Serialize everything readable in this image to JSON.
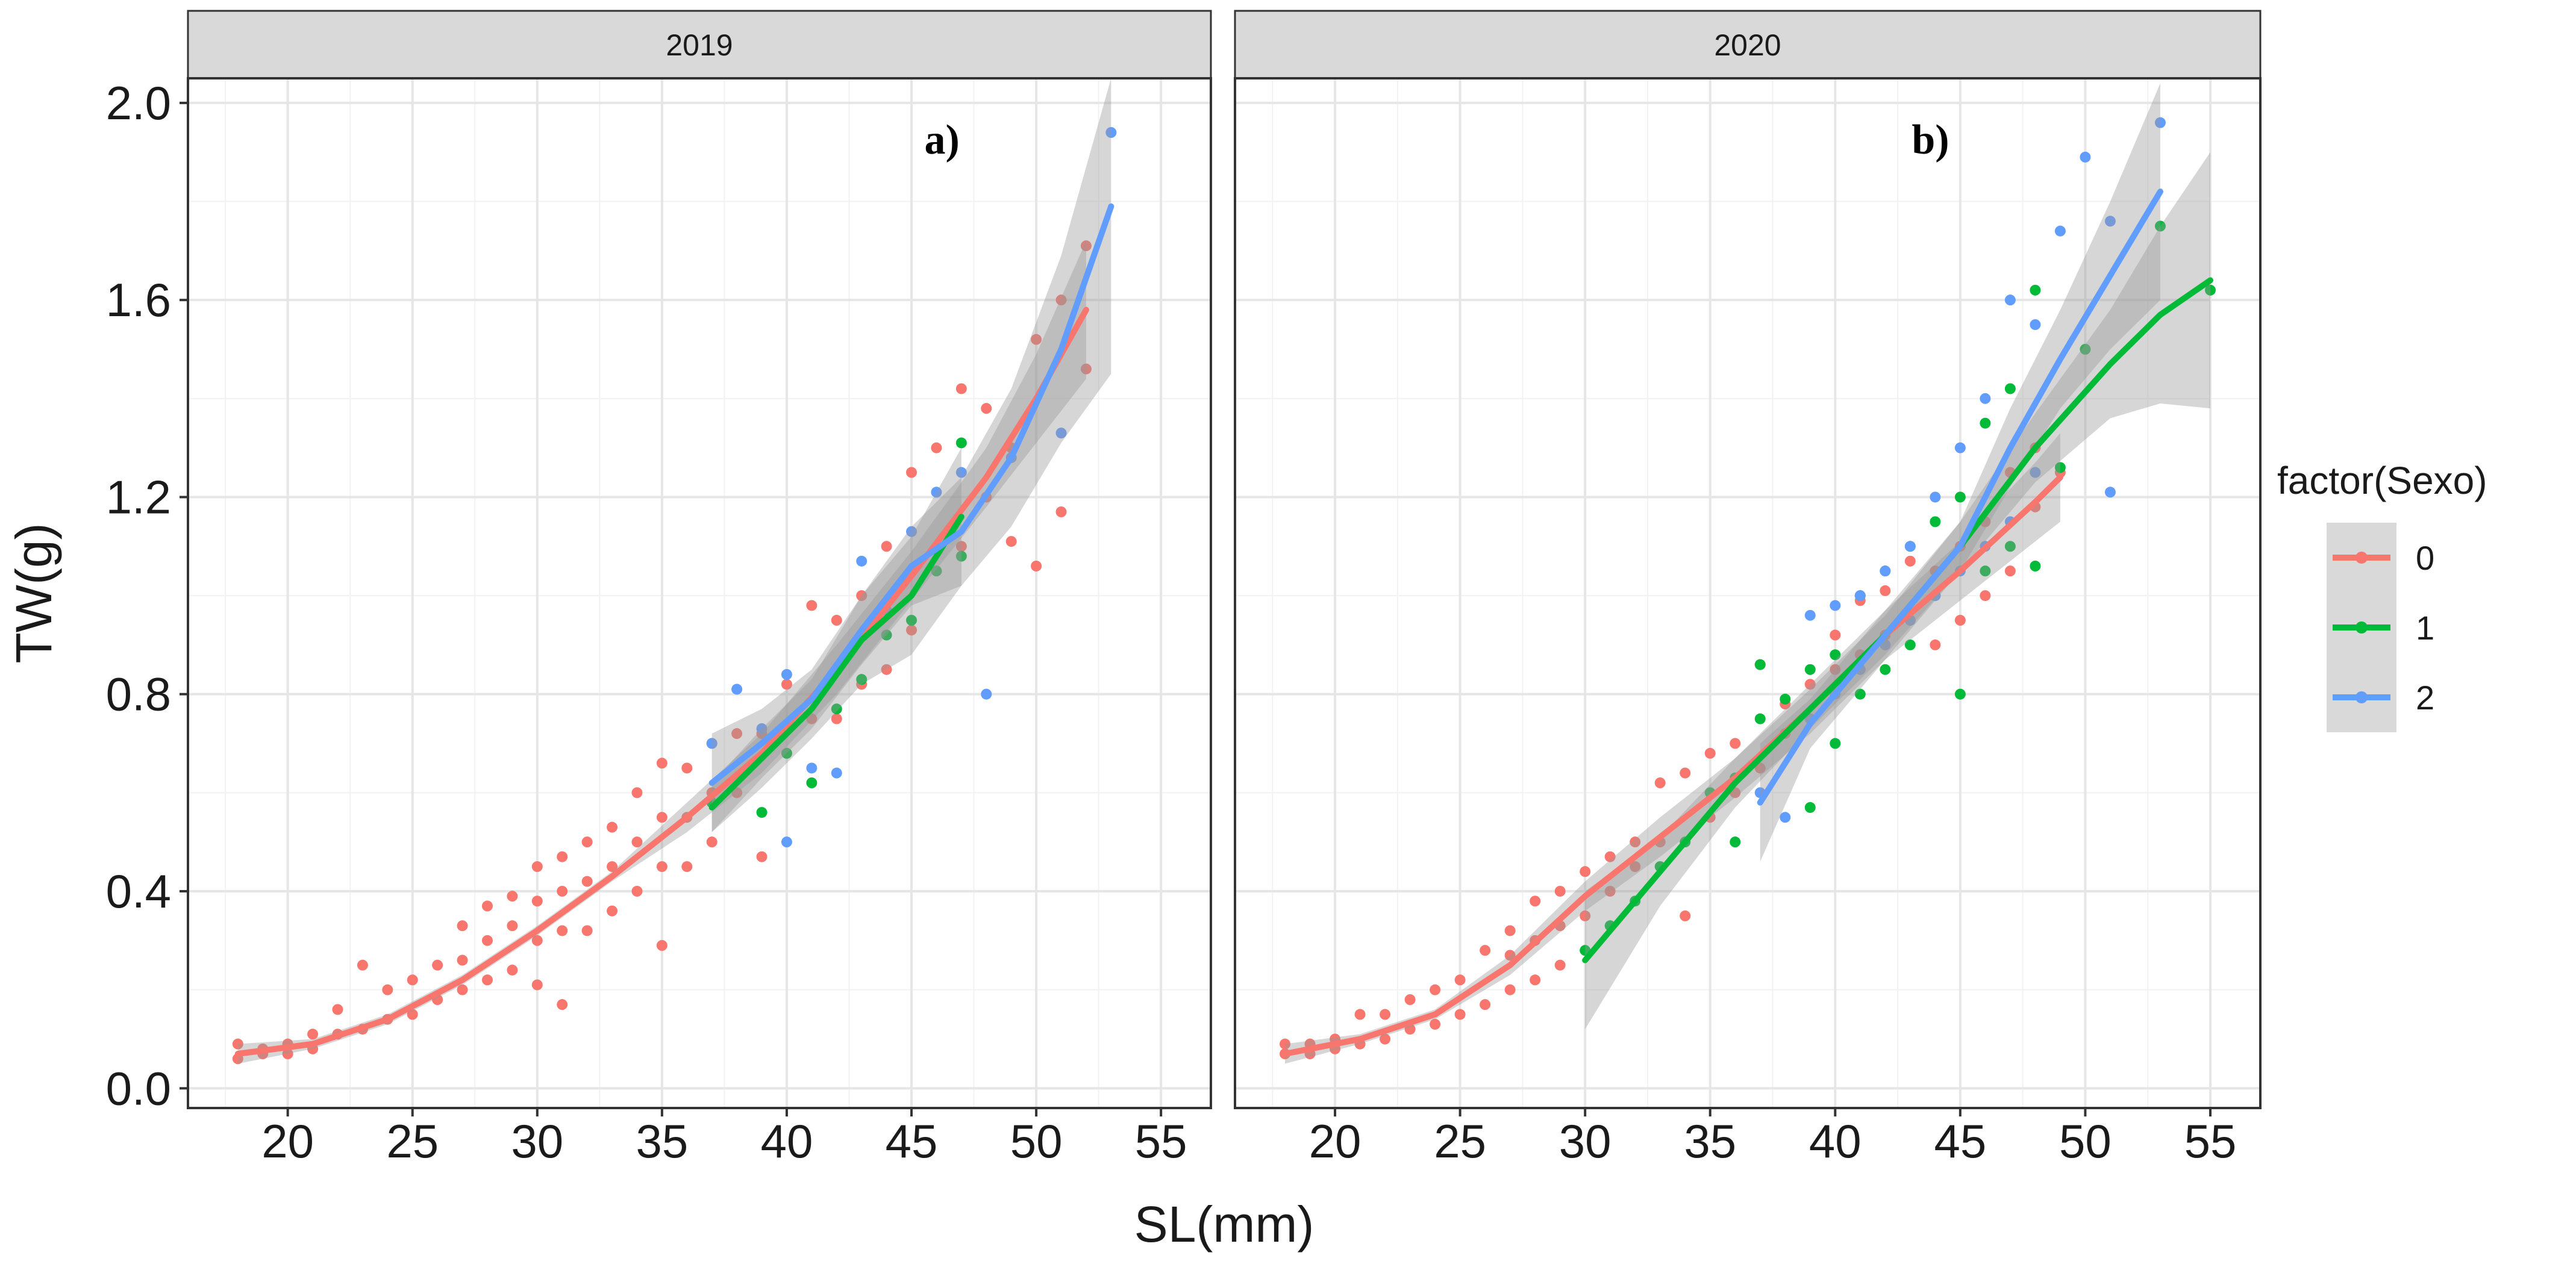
{
  "chart_data": {
    "type": "scatter",
    "facet_variable": "year",
    "xlabel": "SL(mm)",
    "ylabel": "TW(g)",
    "xlim": [
      16,
      57
    ],
    "ylim": [
      -0.04,
      2.05
    ],
    "x_ticks": [
      20,
      25,
      30,
      35,
      40,
      45,
      50,
      55
    ],
    "x_tick_labels": [
      "20",
      "25",
      "30",
      "35",
      "40",
      "45",
      "50",
      "55"
    ],
    "y_ticks": [
      0,
      0.4,
      0.8,
      1.2,
      1.6,
      2.0
    ],
    "y_tick_labels": [
      "0.0",
      "0.4",
      "0.8",
      "1.2",
      "1.6",
      "2.0"
    ],
    "grid": true,
    "legend": {
      "title": "factor(Sexo)",
      "position": "right",
      "entries": [
        {
          "label": "0",
          "color": "#F8766D"
        },
        {
          "label": "1",
          "color": "#00BA38"
        },
        {
          "label": "2",
          "color": "#619CFF"
        }
      ]
    },
    "panels": [
      {
        "strip": "2019",
        "tag": "a)",
        "series": [
          {
            "name": "0",
            "color": "#F8766D",
            "x": [
              18,
              18,
              19,
              19,
              20,
              20,
              21,
              21,
              22,
              22,
              23,
              23,
              24,
              24,
              25,
              25,
              26,
              26,
              27,
              27,
              27,
              28,
              28,
              28,
              29,
              29,
              29,
              30,
              30,
              30,
              30,
              31,
              31,
              31,
              31,
              32,
              32,
              32,
              33,
              33,
              33,
              34,
              34,
              34,
              35,
              35,
              35,
              35,
              36,
              36,
              36,
              37,
              37,
              37,
              38,
              38,
              39,
              39,
              40,
              40,
              41,
              41,
              42,
              42,
              43,
              43,
              44,
              44,
              45,
              45,
              46,
              46,
              47,
              47,
              48,
              48,
              49,
              49,
              50,
              50,
              51,
              51,
              52,
              52
            ],
            "y": [
              0.06,
              0.09,
              0.07,
              0.08,
              0.07,
              0.09,
              0.08,
              0.11,
              0.11,
              0.16,
              0.12,
              0.25,
              0.14,
              0.2,
              0.15,
              0.22,
              0.18,
              0.25,
              0.2,
              0.26,
              0.33,
              0.22,
              0.3,
              0.37,
              0.24,
              0.33,
              0.39,
              0.21,
              0.3,
              0.38,
              0.45,
              0.17,
              0.32,
              0.4,
              0.47,
              0.32,
              0.42,
              0.5,
              0.36,
              0.45,
              0.53,
              0.4,
              0.5,
              0.6,
              0.29,
              0.45,
              0.55,
              0.66,
              0.45,
              0.55,
              0.65,
              0.5,
              0.6,
              0.7,
              0.6,
              0.72,
              0.47,
              0.72,
              0.68,
              0.82,
              0.75,
              0.98,
              0.75,
              0.95,
              0.82,
              1.0,
              0.85,
              1.1,
              0.93,
              1.25,
              1.05,
              1.3,
              1.1,
              1.42,
              1.2,
              1.38,
              1.11,
              1.3,
              1.06,
              1.52,
              1.17,
              1.6,
              1.46,
              1.71
            ],
            "fit_x": [
              18,
              21,
              24,
              27,
              30,
              33,
              36,
              39,
              42,
              45,
              48,
              50,
              52
            ],
            "fit_y": [
              0.07,
              0.09,
              0.14,
              0.22,
              0.32,
              0.43,
              0.55,
              0.68,
              0.85,
              1.04,
              1.24,
              1.4,
              1.58
            ],
            "band_lo": [
              0.05,
              0.08,
              0.13,
              0.21,
              0.31,
              0.42,
              0.52,
              0.64,
              0.8,
              0.99,
              1.18,
              1.31,
              1.44
            ],
            "band_hi": [
              0.09,
              0.1,
              0.15,
              0.23,
              0.33,
              0.44,
              0.58,
              0.72,
              0.9,
              1.09,
              1.3,
              1.49,
              1.72
            ]
          },
          {
            "name": "1",
            "color": "#00BA38",
            "x": [
              37,
              39,
              40,
              41,
              42,
              43,
              44,
              45,
              46,
              47,
              47
            ],
            "y": [
              0.58,
              0.56,
              0.68,
              0.62,
              0.77,
              0.83,
              0.92,
              0.95,
              1.05,
              1.08,
              1.31
            ],
            "fit_x": [
              37,
              39,
              41,
              43,
              45,
              47
            ],
            "fit_y": [
              0.57,
              0.67,
              0.77,
              0.91,
              1.0,
              1.16
            ],
            "band_lo": [
              0.52,
              0.61,
              0.71,
              0.82,
              0.88,
              1.02
            ],
            "band_hi": [
              0.62,
              0.73,
              0.83,
              1.0,
              1.12,
              1.3
            ]
          },
          {
            "name": "2",
            "color": "#619CFF",
            "x": [
              37,
              38,
              39,
              40,
              40,
              41,
              42,
              43,
              44,
              45,
              46,
              47,
              48,
              49,
              51,
              53
            ],
            "y": [
              0.7,
              0.81,
              0.73,
              0.5,
              0.84,
              0.65,
              0.64,
              1.07,
              0.97,
              1.13,
              1.21,
              1.25,
              0.8,
              1.28,
              1.33,
              1.94
            ],
            "fit_x": [
              37,
              39,
              41,
              43,
              45,
              47,
              49,
              51,
              53
            ],
            "fit_y": [
              0.62,
              0.7,
              0.79,
              0.93,
              1.06,
              1.13,
              1.28,
              1.5,
              1.79
            ],
            "band_lo": [
              0.52,
              0.63,
              0.73,
              0.86,
              0.98,
              1.02,
              1.14,
              1.31,
              1.45
            ],
            "band_hi": [
              0.72,
              0.77,
              0.85,
              1.0,
              1.14,
              1.24,
              1.42,
              1.69,
              2.05
            ]
          }
        ]
      },
      {
        "strip": "2020",
        "tag": "b)",
        "series": [
          {
            "name": "0",
            "color": "#F8766D",
            "x": [
              18,
              18,
              19,
              19,
              20,
              20,
              21,
              21,
              22,
              22,
              23,
              23,
              24,
              24,
              25,
              25,
              26,
              26,
              27,
              27,
              27,
              28,
              28,
              28,
              29,
              29,
              29,
              30,
              30,
              31,
              31,
              32,
              32,
              33,
              33,
              34,
              34,
              35,
              35,
              36,
              36,
              37,
              37,
              38,
              38,
              39,
              39,
              40,
              40,
              41,
              41,
              42,
              42,
              43,
              43,
              44,
              44,
              45,
              45,
              46,
              46,
              47,
              47,
              48,
              48,
              49
            ],
            "y": [
              0.07,
              0.09,
              0.07,
              0.09,
              0.08,
              0.1,
              0.09,
              0.15,
              0.1,
              0.15,
              0.12,
              0.18,
              0.13,
              0.2,
              0.15,
              0.22,
              0.17,
              0.28,
              0.2,
              0.27,
              0.32,
              0.22,
              0.3,
              0.38,
              0.25,
              0.33,
              0.4,
              0.35,
              0.44,
              0.4,
              0.47,
              0.45,
              0.5,
              0.5,
              0.62,
              0.35,
              0.64,
              0.55,
              0.68,
              0.6,
              0.7,
              0.65,
              0.86,
              0.72,
              0.78,
              0.75,
              0.82,
              0.85,
              0.92,
              0.88,
              0.99,
              0.92,
              1.01,
              0.95,
              1.07,
              0.9,
              1.05,
              0.95,
              1.1,
              1.0,
              1.15,
              1.05,
              1.25,
              1.18,
              1.3,
              1.25
            ],
            "fit_x": [
              18,
              21,
              24,
              27,
              30,
              33,
              36,
              39,
              42,
              45,
              48,
              49
            ],
            "fit_y": [
              0.07,
              0.1,
              0.15,
              0.25,
              0.39,
              0.51,
              0.63,
              0.77,
              0.92,
              1.05,
              1.19,
              1.24
            ],
            "band_lo": [
              0.05,
              0.09,
              0.14,
              0.23,
              0.36,
              0.47,
              0.59,
              0.72,
              0.87,
              0.99,
              1.11,
              1.15
            ],
            "band_hi": [
              0.09,
              0.11,
              0.16,
              0.27,
              0.42,
              0.55,
              0.67,
              0.82,
              0.97,
              1.11,
              1.27,
              1.33
            ]
          },
          {
            "name": "1",
            "color": "#00BA38",
            "x": [
              30,
              31,
              32,
              33,
              34,
              35,
              36,
              36,
              37,
              37,
              38,
              39,
              39,
              40,
              40,
              41,
              41,
              42,
              42,
              43,
              43,
              44,
              44,
              45,
              45,
              46,
              46,
              47,
              47,
              48,
              48,
              49,
              50,
              53,
              55
            ],
            "y": [
              0.28,
              0.33,
              0.38,
              0.45,
              0.5,
              0.6,
              0.5,
              0.63,
              0.75,
              0.86,
              0.79,
              0.57,
              0.85,
              0.7,
              0.88,
              0.8,
              1.0,
              0.85,
              1.05,
              0.9,
              1.1,
              1.0,
              1.15,
              0.8,
              1.2,
              1.05,
              1.35,
              1.1,
              1.42,
              1.06,
              1.62,
              1.26,
              1.5,
              1.75,
              1.62
            ],
            "fit_x": [
              30,
              33,
              36,
              39,
              42,
              45,
              48,
              51,
              53,
              55
            ],
            "fit_y": [
              0.26,
              0.44,
              0.62,
              0.77,
              0.92,
              1.1,
              1.3,
              1.47,
              1.57,
              1.64
            ],
            "band_lo": [
              0.12,
              0.37,
              0.57,
              0.73,
              0.88,
              1.05,
              1.23,
              1.36,
              1.39,
              1.38
            ],
            "band_hi": [
              0.4,
              0.51,
              0.67,
              0.81,
              0.96,
              1.15,
              1.37,
              1.58,
              1.75,
              1.9
            ]
          },
          {
            "name": "2",
            "color": "#619CFF",
            "x": [
              37,
              38,
              39,
              39,
              40,
              40,
              41,
              41,
              42,
              42,
              43,
              43,
              44,
              44,
              45,
              45,
              46,
              46,
              47,
              47,
              48,
              48,
              49,
              50,
              51,
              51,
              53
            ],
            "y": [
              0.6,
              0.55,
              0.96,
              0.75,
              0.8,
              0.98,
              0.85,
              1.0,
              0.9,
              1.05,
              0.95,
              1.1,
              1.0,
              1.2,
              1.05,
              1.3,
              1.1,
              1.4,
              1.15,
              1.6,
              1.25,
              1.55,
              1.74,
              1.89,
              1.21,
              1.76,
              1.96
            ],
            "fit_x": [
              37,
              39,
              41,
              43,
              45,
              47,
              49,
              51,
              53
            ],
            "fit_y": [
              0.58,
              0.74,
              0.86,
              0.98,
              1.1,
              1.3,
              1.48,
              1.65,
              1.82
            ],
            "band_lo": [
              0.46,
              0.69,
              0.81,
              0.93,
              1.05,
              1.22,
              1.38,
              1.5,
              1.6
            ],
            "band_hi": [
              0.7,
              0.79,
              0.91,
              1.03,
              1.15,
              1.38,
              1.58,
              1.8,
              2.04
            ]
          }
        ]
      }
    ]
  }
}
